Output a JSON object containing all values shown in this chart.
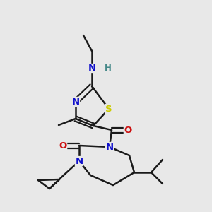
{
  "bg_color": "#e8e8e8",
  "bond_color": "#1a1a1a",
  "bond_width": 1.8,
  "atom_colors": {
    "N": "#1010cc",
    "S": "#cccc00",
    "O": "#cc1010",
    "H": "#448888",
    "C": "#1a1a1a"
  },
  "fig_width": 3.0,
  "fig_height": 3.0,
  "dpi": 100
}
